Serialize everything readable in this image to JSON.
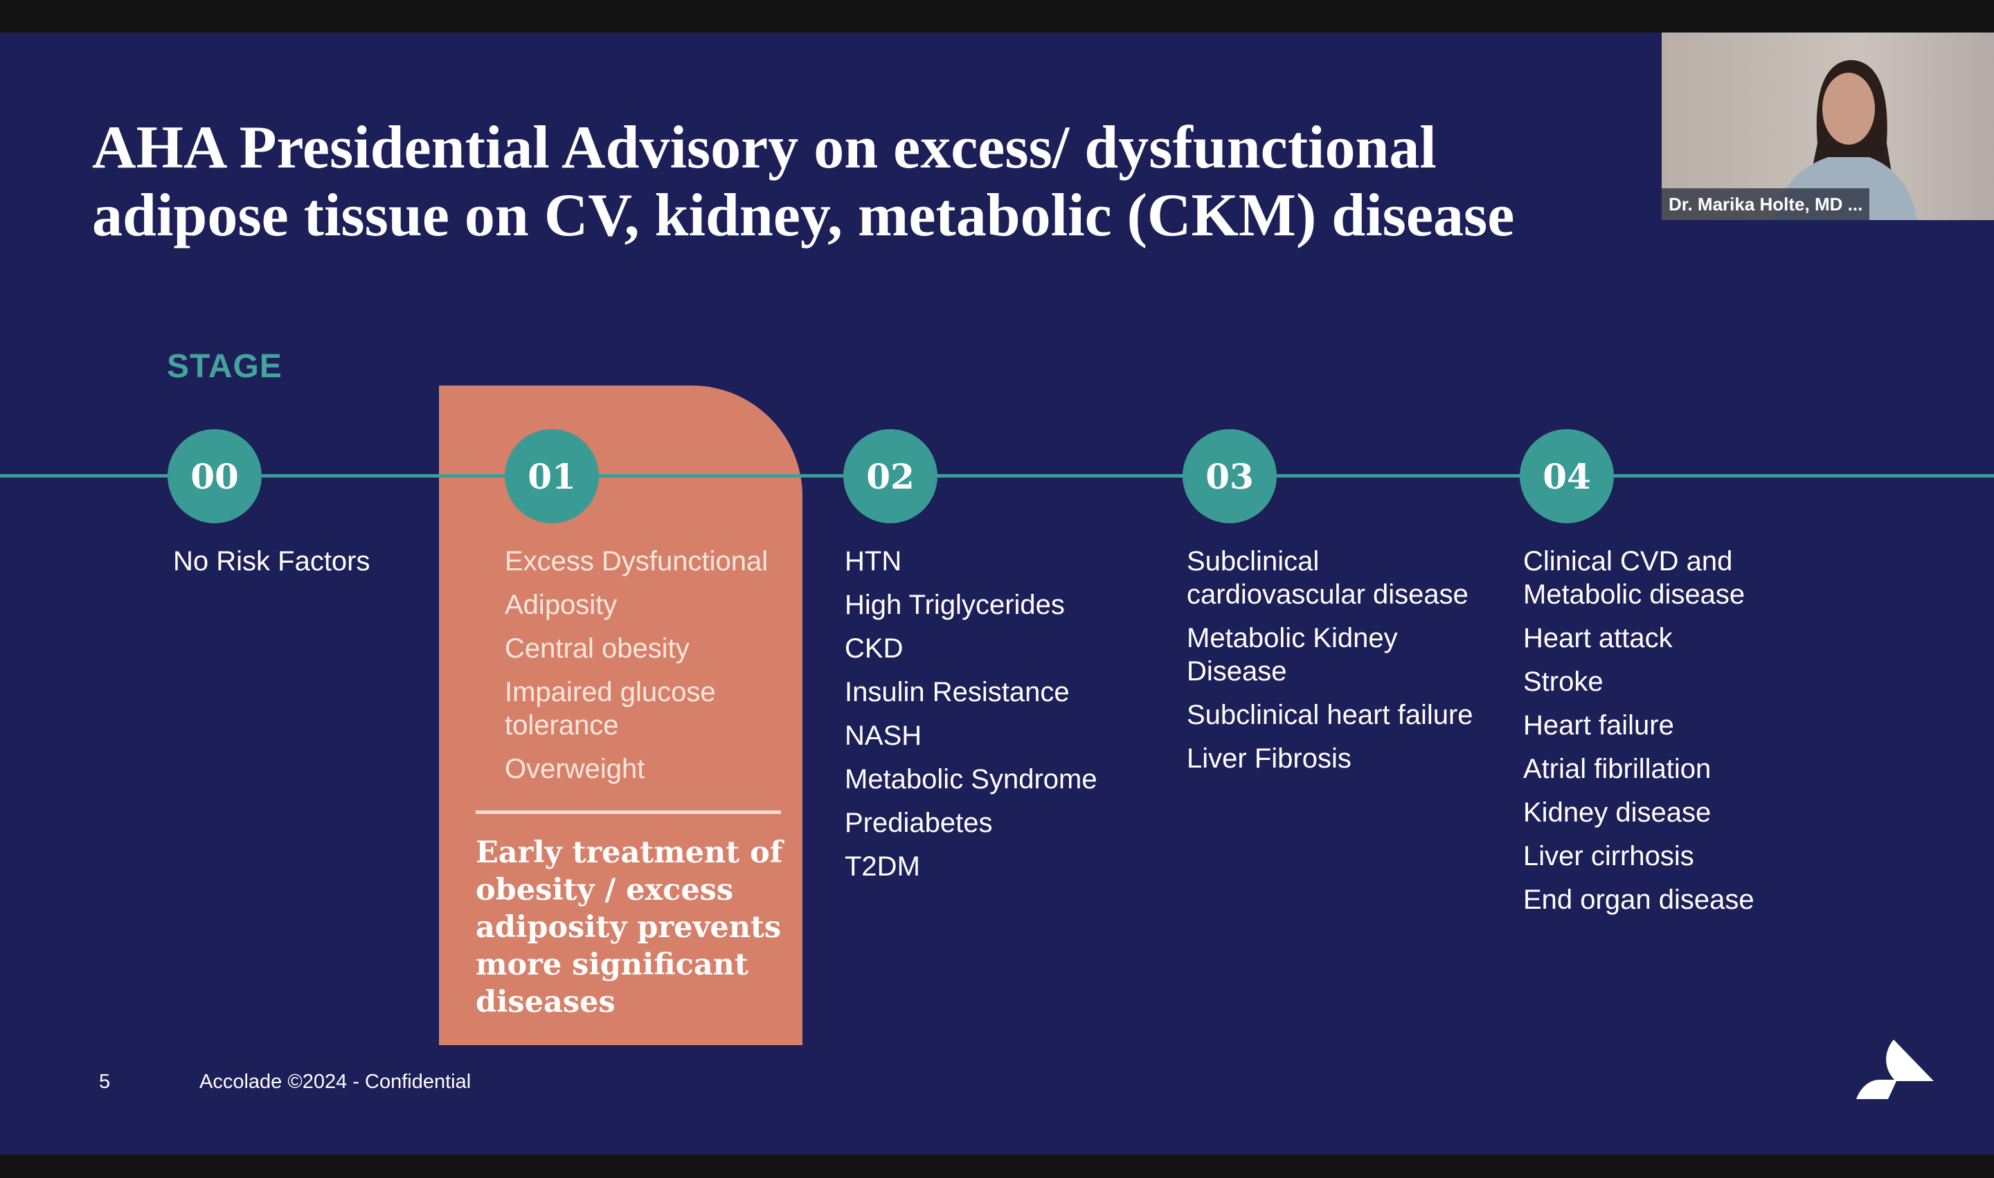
{
  "slide": {
    "title_line1": "AHA Presidential Advisory on excess/ dysfunctional",
    "title_line2": "adipose tissue on CV, kidney, metabolic (CKM) disease",
    "stage_label": "STAGE",
    "stages": [
      {
        "num": "00",
        "items": [
          "No Risk Factors"
        ]
      },
      {
        "num": "01",
        "items": [
          "Excess Dysfunctional",
          "Adiposity",
          "Central obesity",
          "Impaired glucose tolerance",
          "Overweight"
        ]
      },
      {
        "num": "02",
        "items": [
          "HTN",
          "High Triglycerides",
          "CKD",
          "Insulin Resistance",
          "NASH",
          "Metabolic Syndrome",
          "Prediabetes",
          "T2DM"
        ]
      },
      {
        "num": "03",
        "items": [
          "Subclinical cardiovascular disease",
          "Metabolic Kidney Disease",
          "Subclinical heart failure",
          "Liver Fibrosis"
        ]
      },
      {
        "num": "04",
        "items": [
          "Clinical CVD and Metabolic disease",
          "Heart attack",
          "Stroke",
          "Heart failure",
          "Atrial fibrillation",
          "Kidney disease",
          "Liver cirrhosis",
          "End organ disease"
        ]
      }
    ],
    "highlight_note": "Early treatment of obesity / excess adiposity prevents more significant diseases",
    "page_number": "5",
    "footer": "Accolade ©2024 - Confidential",
    "logo": "Accolade"
  },
  "video": {
    "participant_name": "Dr. Marika Holte, MD ..."
  },
  "colors": {
    "background": "#1c1f58",
    "teal": "#3a9a94",
    "orange": "#d6806a"
  }
}
